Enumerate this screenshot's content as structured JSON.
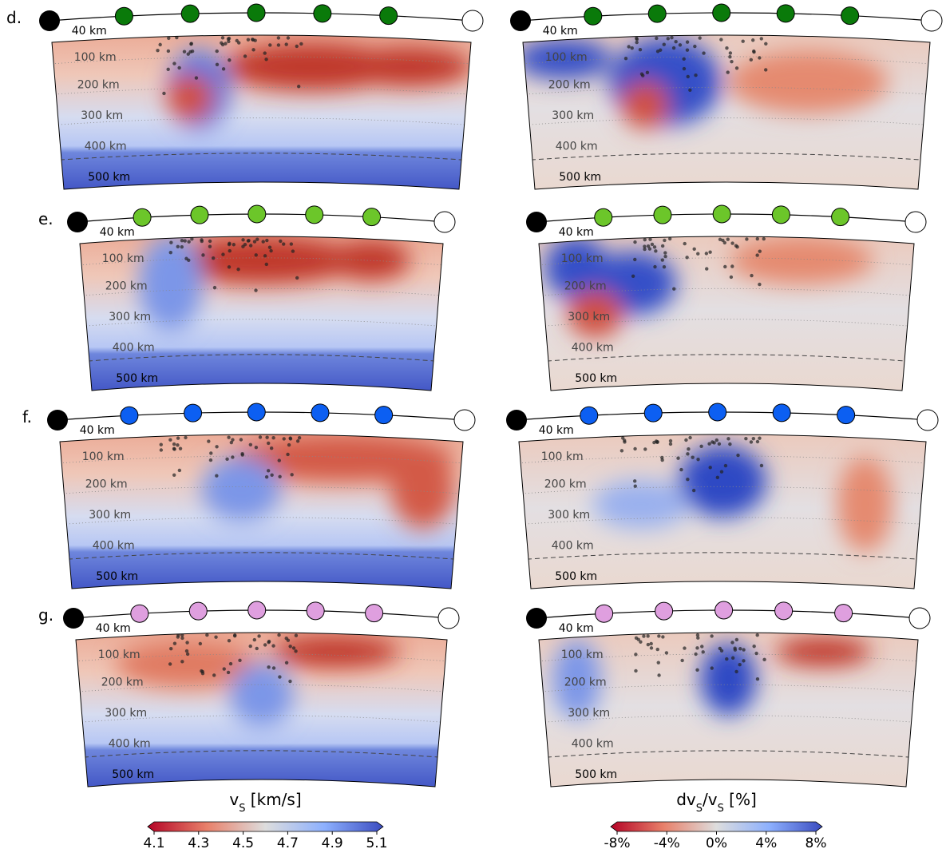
{
  "panels": [
    {
      "label": "d."
    },
    {
      "label": "e."
    },
    {
      "label": "f."
    },
    {
      "label": "g."
    }
  ],
  "depth_labels": [
    "40 km",
    "100 km",
    "200 km",
    "300 km",
    "400 km",
    "500 km"
  ],
  "colorbars": [
    {
      "title_parts": [
        "v",
        "S",
        " [km/s]"
      ],
      "tick_labels": [
        "4.1",
        "4.3",
        "4.5",
        "4.7",
        "4.9",
        "5.1"
      ]
    },
    {
      "title_parts": [
        "dv",
        "S",
        "/v",
        "S",
        " [%]"
      ],
      "tick_labels": [
        "-8%",
        "-4%",
        "0%",
        "4%",
        "8%"
      ]
    }
  ]
}
